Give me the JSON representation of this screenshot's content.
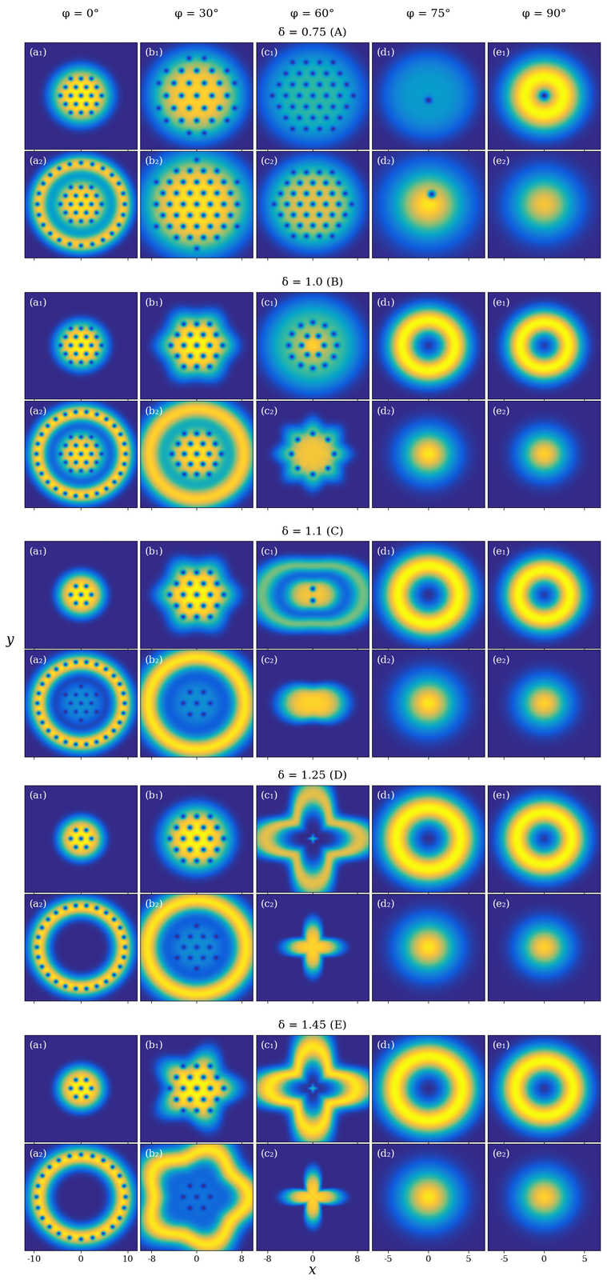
{
  "chart_data": {
    "type": "heatmap_grid",
    "xlabel": "x",
    "ylabel": "y",
    "tick_labels": "x",
    "columns": [
      "φ = 0°",
      "φ = 30°",
      "φ = 60°",
      "φ = 75°",
      "φ = 90°"
    ],
    "column_xlim": [
      [
        -12,
        12
      ],
      [
        -10,
        10
      ],
      [
        -10,
        10
      ],
      [
        -7,
        7
      ],
      [
        -7,
        7
      ]
    ],
    "column_xticks": [
      [
        -10,
        0,
        10
      ],
      [
        -8,
        0,
        8
      ],
      [
        -8,
        0,
        8
      ],
      [
        -5,
        0,
        5
      ],
      [
        -5,
        0,
        5
      ]
    ],
    "blocks": [
      {
        "title": "δ = 0.75 (A)",
        "rows": [
          [
            {
              "label": "(a₁)",
              "envelope": [
                [
                  0,
                  6.2,
                  1,
                  4
                ]
              ],
              "lattice": [
                2.2,
                5.4
              ]
            },
            {
              "label": "(b₁)",
              "envelope": [
                [
                  0,
                  7.8,
                  0.9,
                  4
                ]
              ],
              "lattice": [
                2.7,
                7.2
              ]
            },
            {
              "label": "(c₁)",
              "envelope": [
                [
                  0,
                  8.5,
                  0.5,
                  4
                ]
              ],
              "lattice": [
                2.4,
                7.2
              ]
            },
            {
              "label": "(d₁)",
              "envelope": [
                [
                  0,
                  5.4,
                  0.35,
                  4
                ]
              ],
              "vortices": [
                [
                  0,
                  -0.6
                ]
              ]
            },
            {
              "label": "(e₁)",
              "envelope": [
                [
                  2.4,
                  2.4,
                  1,
                  2
                ]
              ],
              "vortices": [
                [
                  0,
                  0
                ]
              ]
            }
          ],
          [
            {
              "label": "(a₂)",
              "envelope": [
                [
                  0,
                  5.8,
                  0.95,
                  4
                ],
                [
                  9.0,
                  1.9,
                  0.9,
                  2
                ]
              ],
              "lattice": [
                2.2,
                5.2
              ],
              "ring_vortices": [
                [
                  24,
                  9.3
                ]
              ]
            },
            {
              "label": "(b₂)",
              "envelope": [
                [
                  0,
                  9.2,
                  0.95,
                  4
                ]
              ],
              "lattice": [
                2.4,
                8.4
              ]
            },
            {
              "label": "(c₂)",
              "envelope": [
                [
                  0,
                  7.8,
                  0.8,
                  4
                ]
              ],
              "lattice": [
                2.3,
                7.0
              ]
            },
            {
              "label": "(d₂)",
              "envelope": [
                [
                  0,
                  4.2,
                  0.95,
                  2
                ]
              ],
              "vortices": [
                [
                  0.4,
                  1.3
                ]
              ]
            },
            {
              "label": "(e₂)",
              "envelope": [
                [
                  0,
                  3.6,
                  0.85,
                  2
                ]
              ]
            }
          ]
        ]
      },
      {
        "title": "δ = 1.0 (B)",
        "rows": [
          [
            {
              "label": "(a₁)",
              "envelope": [
                [
                  0,
                  5.2,
                  1,
                  4
                ]
              ],
              "lattice": [
                2.2,
                4.5
              ]
            },
            {
              "label": "(b₁)",
              "envelope": [
                [
                  0,
                  5.9,
                  1,
                  4
                ]
              ],
              "lattice": [
                2.3,
                5.0
              ],
              "lobes": [
                6,
                0.06
              ]
            },
            {
              "label": "(c₁)",
              "envelope": [
                [
                  0,
                  8.2,
                  0.6,
                  4
                ],
                [
                  0,
                  2.5,
                  0.3,
                  2
                ]
              ],
              "ring_vortices": [
                [
                  6,
                  2.0
                ],
                [
                  12,
                  4.3
                ]
              ]
            },
            {
              "label": "(d₁)",
              "envelope": [
                [
                  3.3,
                  1.8,
                  1,
                  2
                ]
              ]
            },
            {
              "label": "(e₁)",
              "envelope": [
                [
                  3.0,
                  1.7,
                  1,
                  2
                ]
              ]
            }
          ],
          [
            {
              "label": "(a₂)",
              "envelope": [
                [
                  0,
                  5.0,
                  0.95,
                  4
                ],
                [
                  9.2,
                  1.9,
                  0.95,
                  2
                ]
              ],
              "lattice": [
                2.2,
                4.4
              ],
              "ring_vortices": [
                [
                  26,
                  9.5
                ]
              ]
            },
            {
              "label": "(b₂)",
              "envelope": [
                [
                  0,
                  5.2,
                  0.95,
                  4
                ],
                [
                  8.4,
                  2.2,
                  0.9,
                  2
                ]
              ],
              "lattice": [
                2.2,
                4.6
              ]
            },
            {
              "label": "(c₂)",
              "envelope": [
                [
                  0,
                  5.4,
                  0.85,
                  4
                ]
              ],
              "lobes": [
                8,
                0.08
              ],
              "ring_vortices": [
                [
                  8,
                  3.8
                ]
              ]
            },
            {
              "label": "(d₂)",
              "envelope": [
                [
                  0,
                  3.0,
                  0.95,
                  2
                ]
              ]
            },
            {
              "label": "(e₂)",
              "envelope": [
                [
                  0,
                  2.7,
                  0.9,
                  2
                ]
              ]
            }
          ]
        ]
      },
      {
        "title": "δ = 1.1 (C)",
        "rows": [
          [
            {
              "label": "(a₁)",
              "envelope": [
                [
                  0,
                  4.8,
                  1,
                  4
                ]
              ],
              "lattice": [
                2.2,
                3.8
              ]
            },
            {
              "label": "(b₁)",
              "envelope": [
                [
                  0,
                  6.0,
                  1,
                  4
                ]
              ],
              "lattice": [
                2.4,
                4.8
              ],
              "lobes": [
                6,
                0.07
              ]
            },
            {
              "label": "(c₁)",
              "envelope": [
                [
                  0,
                  3.8,
                  0.85,
                  4
                ],
                [
                  7.2,
                  1.8,
                  0.6,
                  2
                ]
              ],
              "lobes": [
                2,
                0.25
              ],
              "vortices": [
                [
                  0,
                  1.1
                ],
                [
                  0,
                  -1.1
                ]
              ]
            },
            {
              "label": "(d₁)",
              "envelope": [
                [
                  3.8,
                  1.9,
                  1,
                  2
                ]
              ]
            },
            {
              "label": "(e₁)",
              "envelope": [
                [
                  3.2,
                  1.8,
                  1,
                  2
                ]
              ]
            }
          ],
          [
            {
              "label": "(a₂)",
              "envelope": [
                [
                  0,
                  4.6,
                  0.3,
                  4
                ],
                [
                  9.0,
                  2.0,
                  0.95,
                  2
                ]
              ],
              "lattice": [
                2.2,
                4.0
              ],
              "ring_vortices": [
                [
                  26,
                  9.3
                ]
              ]
            },
            {
              "label": "(b₂)",
              "envelope": [
                [
                  0,
                  4.6,
                  0.3,
                  4
                ],
                [
                  8.6,
                  2.2,
                  0.95,
                  2
                ]
              ],
              "ring_vortices": [
                [
                  6,
                  2.4
                ]
              ],
              "vortices": [
                [
                  0,
                  0
                ]
              ]
            },
            {
              "label": "(c₂)",
              "envelope": [
                [
                  0,
                  4.4,
                  0.9,
                  4
                ]
              ],
              "lobes": [
                2,
                0.3
              ]
            },
            {
              "label": "(d₂)",
              "envelope": [
                [
                  0,
                  3.2,
                  0.95,
                  2
                ]
              ]
            },
            {
              "label": "(e₂)",
              "envelope": [
                [
                  0,
                  2.8,
                  0.9,
                  2
                ]
              ]
            }
          ]
        ]
      },
      {
        "title": "δ = 1.25 (D)",
        "rows": [
          [
            {
              "label": "(a₁)",
              "envelope": [
                [
                  0,
                  4.6,
                  1,
                  4
                ]
              ],
              "lattice": [
                2.2,
                3.6
              ]
            },
            {
              "label": "(b₁)",
              "envelope": [
                [
                  0,
                  5.9,
                  1,
                  4
                ]
              ],
              "lattice": [
                2.4,
                4.8
              ]
            },
            {
              "label": "(c₁)",
              "envelope": [
                [
                  6.5,
                  2.3,
                  0.8,
                  2
                ],
                [
                  0,
                  0.5,
                  0.5,
                  2
                ]
              ],
              "lobes": [
                4,
                0.3
              ]
            },
            {
              "label": "(d₁)",
              "envelope": [
                [
                  4.0,
                  2.0,
                  1,
                  2
                ]
              ]
            },
            {
              "label": "(e₁)",
              "envelope": [
                [
                  3.4,
                  1.9,
                  1,
                  2
                ]
              ]
            }
          ],
          [
            {
              "label": "(a₂)",
              "envelope": [
                [
                  9.0,
                  2.0,
                  0.95,
                  2
                ]
              ],
              "ring_vortices": [
                [
                  26,
                  9.4
                ]
              ]
            },
            {
              "label": "(b₂)",
              "envelope": [
                [
                  0,
                  4.8,
                  0.3,
                  4
                ],
                [
                  8.8,
                  2.2,
                  0.95,
                  2
                ]
              ],
              "lattice": [
                2.3,
                4.2
              ]
            },
            {
              "label": "(c₂)",
              "envelope": [
                [
                  0,
                  3.6,
                  0.9,
                  4
                ]
              ],
              "lobes": [
                4,
                0.35
              ]
            },
            {
              "label": "(d₂)",
              "envelope": [
                [
                  0,
                  3.2,
                  0.95,
                  2
                ]
              ]
            },
            {
              "label": "(e₂)",
              "envelope": [
                [
                  0,
                  2.8,
                  0.9,
                  2
                ]
              ]
            }
          ]
        ]
      },
      {
        "title": "δ = 1.45 (E)",
        "rows": [
          [
            {
              "label": "(a₁)",
              "envelope": [
                [
                  0,
                  4.8,
                  1,
                  4
                ]
              ],
              "lattice": [
                2.2,
                3.8
              ]
            },
            {
              "label": "(b₁)",
              "envelope": [
                [
                  0,
                  6.0,
                  1,
                  4
                ]
              ],
              "lattice": [
                2.4,
                5.0
              ],
              "lobes": [
                5,
                0.15
              ]
            },
            {
              "label": "(c₁)",
              "envelope": [
                [
                  6.0,
                  2.6,
                  0.95,
                  2
                ],
                [
                  0,
                  0.5,
                  0.5,
                  2
                ]
              ],
              "lobes": [
                4,
                0.3
              ]
            },
            {
              "label": "(d₁)",
              "envelope": [
                [
                  4.2,
                  2.0,
                  1,
                  2
                ]
              ]
            },
            {
              "label": "(e₁)",
              "envelope": [
                [
                  3.6,
                  1.9,
                  1,
                  2
                ]
              ]
            }
          ],
          [
            {
              "label": "(a₂)",
              "envelope": [
                [
                  9.0,
                  2.2,
                  0.95,
                  2
                ]
              ],
              "ring_vortices": [
                [
                  24,
                  9.5
                ]
              ]
            },
            {
              "label": "(b₂)",
              "envelope": [
                [
                  0,
                  5.0,
                  0.2,
                  4
                ],
                [
                  8.4,
                  2.4,
                  0.95,
                  2
                ]
              ],
              "lobes": [
                5,
                0.1
              ],
              "lattice": [
                2.4,
                4.0
              ]
            },
            {
              "label": "(c₂)",
              "envelope": [
                [
                  0,
                  3.4,
                  0.9,
                  4
                ]
              ],
              "lobes": [
                4,
                0.45
              ]
            },
            {
              "label": "(d₂)",
              "envelope": [
                [
                  0,
                  3.3,
                  0.95,
                  2
                ]
              ]
            },
            {
              "label": "(e₂)",
              "envelope": [
                [
                  0,
                  3.0,
                  0.9,
                  2
                ]
              ]
            }
          ]
        ]
      }
    ]
  }
}
